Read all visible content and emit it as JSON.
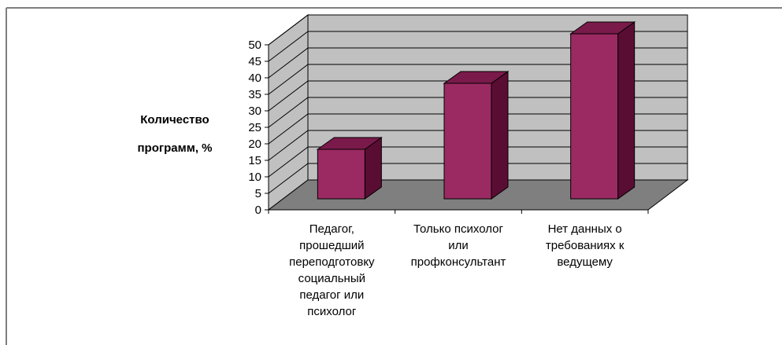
{
  "chart_data": {
    "type": "bar",
    "style": "3d-column",
    "categories": [
      [
        "Педагог,",
        "прошедший",
        "переподготовку",
        "социальный",
        "педагог или",
        "психолог"
      ],
      [
        "Только психолог",
        "или",
        "профконсультант"
      ],
      [
        "Нет данных о",
        "требованиях к",
        "ведущему"
      ]
    ],
    "values": [
      15,
      35,
      50
    ],
    "ylabel": [
      "Количество",
      "программ, %"
    ],
    "ylim": [
      0,
      50
    ],
    "yticks": [
      "0",
      "5",
      "10",
      "15",
      "20",
      "25",
      "30",
      "35",
      "40",
      "45",
      "50"
    ],
    "grid": true,
    "legend": "none",
    "colors": {
      "bar_front": "#9b2a62",
      "bar_side": "#5a0d33",
      "bar_top": "#7a1a4a",
      "wall": "#c0c0c0",
      "floor": "#7f7f7f",
      "grid": "#000000",
      "frame": "#7f7f7f"
    }
  }
}
